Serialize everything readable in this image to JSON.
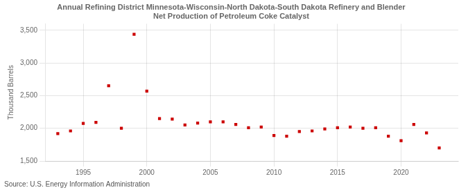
{
  "chart_data": {
    "type": "scatter",
    "title": "Annual Refining District Minnesota-Wisconsin-North Dakota-South Dakota Refinery and Blender\nNet Production of Petroleum Coke Catalyst",
    "ylabel": "Thousand Barrels",
    "annotations": [
      "Source: U.S. Energy Information Administration"
    ],
    "x": [
      1993,
      1994,
      1995,
      1996,
      1997,
      1998,
      1999,
      2000,
      2001,
      2002,
      2003,
      2004,
      2005,
      2006,
      2007,
      2008,
      2009,
      2010,
      2011,
      2012,
      2013,
      2014,
      2015,
      2016,
      2017,
      2018,
      2019,
      2020,
      2021,
      2022,
      2023
    ],
    "values": [
      1920,
      1960,
      2075,
      2090,
      2650,
      2000,
      3440,
      2570,
      2150,
      2140,
      2050,
      2080,
      2100,
      2100,
      2060,
      2010,
      2020,
      1890,
      1880,
      1950,
      1960,
      1990,
      2010,
      2020,
      2000,
      2010,
      1880,
      1810,
      2060,
      1930,
      1700
    ],
    "color": "#cc0000",
    "marker": "square",
    "xlim": [
      1992.0,
      2024.5
    ],
    "xticks": [
      1995,
      2000,
      2005,
      2010,
      2015,
      2020
    ],
    "ylim": [
      1500,
      3600
    ],
    "yticks": [
      {
        "value": 1500,
        "label": "1,500"
      },
      {
        "value": 2000,
        "label": "2,000"
      },
      {
        "value": 2500,
        "label": "2,500"
      },
      {
        "value": 3000,
        "label": "3,000"
      },
      {
        "value": 3500,
        "label": "3,500"
      }
    ],
    "grid": true
  }
}
